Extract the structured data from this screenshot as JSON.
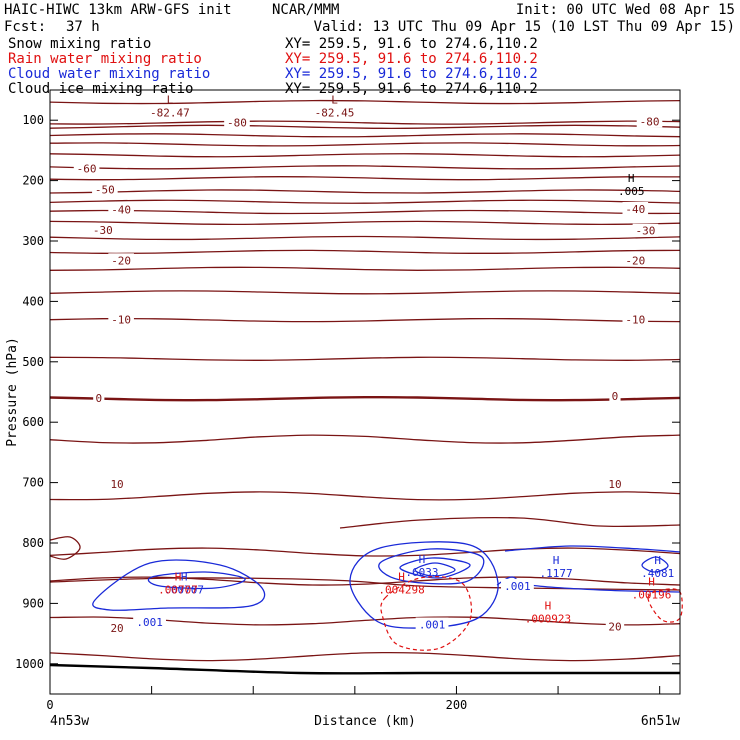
{
  "header": {
    "model": "HAIC-HIWC 13km ARW-GFS init",
    "org": "NCAR/MMM",
    "init": "Init: 00 UTC Wed 08 Apr 15",
    "fcst_label": "Fcst:",
    "fcst_value": "37 h",
    "valid": "Valid: 13 UTC Thu 09 Apr 15 (10 LST Thu 09 Apr 15)"
  },
  "fields": [
    {
      "name": "Snow mixing ratio",
      "xy": "XY= 259.5, 91.6 to 274.6,110.2",
      "color": "#000000"
    },
    {
      "name": "Rain water mixing ratio",
      "xy": "XY= 259.5, 91.6 to 274.6,110.2",
      "color": "#e01010"
    },
    {
      "name": "Cloud water mixing ratio",
      "xy": "XY= 259.5, 91.6 to 274.6,110.2",
      "color": "#1a2ad8"
    },
    {
      "name": "Cloud ice mixing ratio",
      "xy": "XY= 259.5, 91.6 to 274.6,110.2",
      "color": "#000000"
    }
  ],
  "colors": {
    "temperature": "#7a1414",
    "rain": "#e01010",
    "cloud_water": "#1a2ad8",
    "terrain": "#000000"
  },
  "chart_data": {
    "type": "contour-cross-section",
    "xlabel": "Distance (km)",
    "ylabel": "Pressure (hPa)",
    "xlim": [
      0,
      310
    ],
    "ylim": [
      1050,
      50
    ],
    "y_log_scale": false,
    "grid": false,
    "x_ticks": [
      0,
      200
    ],
    "x_minor_ticks": [
      50,
      100,
      150,
      250,
      300
    ],
    "y_ticks": [
      100,
      200,
      300,
      400,
      500,
      600,
      700,
      800,
      900,
      1000
    ],
    "endpoints": {
      "left": "4n53w",
      "right": "6n51w"
    },
    "temperature_isotherms": [
      {
        "label": "-80",
        "p": 111
      },
      {
        "label": "-60",
        "p": 178
      },
      {
        "label": "-50",
        "p": 218
      },
      {
        "label": "-40",
        "p": 252
      },
      {
        "label": "-30",
        "p": 295
      },
      {
        "label": "-20",
        "p": 346
      },
      {
        "label": "-10",
        "p": 431
      },
      {
        "label": "0",
        "p": 561
      },
      {
        "label": "10",
        "p": 722
      },
      {
        "label": "20",
        "p": 929
      }
    ],
    "temperature_labels": [
      {
        "text": "-80",
        "x": 92,
        "p": 104
      },
      {
        "text": "-80",
        "x": 295,
        "p": 102
      },
      {
        "text": "-60",
        "x": 18,
        "p": 180
      },
      {
        "text": "-50",
        "x": 27,
        "p": 215
      },
      {
        "text": "-40",
        "x": 35,
        "p": 248
      },
      {
        "text": "-40",
        "x": 288,
        "p": 247
      },
      {
        "text": "-30",
        "x": 26,
        "p": 282
      },
      {
        "text": "-30",
        "x": 293,
        "p": 283
      },
      {
        "text": "-20",
        "x": 35,
        "p": 332
      },
      {
        "text": "-20",
        "x": 288,
        "p": 332
      },
      {
        "text": "-10",
        "x": 35,
        "p": 430
      },
      {
        "text": "-10",
        "x": 288,
        "p": 430
      },
      {
        "text": "0",
        "x": 24,
        "p": 560
      },
      {
        "text": "0",
        "x": 278,
        "p": 557
      },
      {
        "text": "10",
        "x": 33,
        "p": 702
      },
      {
        "text": "10",
        "x": 278,
        "p": 702
      },
      {
        "text": "20",
        "x": 33,
        "p": 941
      },
      {
        "text": "20",
        "x": 278,
        "p": 938
      }
    ],
    "extrema": [
      {
        "field": "temperature",
        "type": "L",
        "value": "-82.47",
        "x": 59,
        "p": 72
      },
      {
        "field": "temperature",
        "type": "L",
        "value": "-82.45",
        "x": 140,
        "p": 72
      },
      {
        "field": "snow",
        "type": "H",
        "value": ".005",
        "x": 286,
        "p": 202
      },
      {
        "field": "cloud_water",
        "type": "H",
        "value": ".6033",
        "x": 183,
        "p": 833
      },
      {
        "field": "cloud_water",
        "type": "H",
        "value": ".1177",
        "x": 249,
        "p": 835
      },
      {
        "field": "cloud_water",
        "type": "H",
        "value": ".4081",
        "x": 299,
        "p": 835
      },
      {
        "field": "cloud_water",
        "type": "H",
        "value": ".00707",
        "x": 66,
        "p": 862
      },
      {
        "field": "rain",
        "type": "H",
        "value": ".00707",
        "x": 63,
        "p": 862
      },
      {
        "field": "rain",
        "type": "H",
        "value": ".004298",
        "x": 173,
        "p": 862
      },
      {
        "field": "rain",
        "type": "H",
        "value": ".000923",
        "x": 245,
        "p": 910
      },
      {
        "field": "rain",
        "type": "H",
        "value": ".00196",
        "x": 296,
        "p": 870
      }
    ],
    "cloud_water_labels": [
      {
        "text": ".001",
        "x": 49,
        "p": 931
      },
      {
        "text": ".001",
        "x": 188,
        "p": 935
      },
      {
        "text": ".001",
        "x": 230,
        "p": 871
      }
    ]
  }
}
